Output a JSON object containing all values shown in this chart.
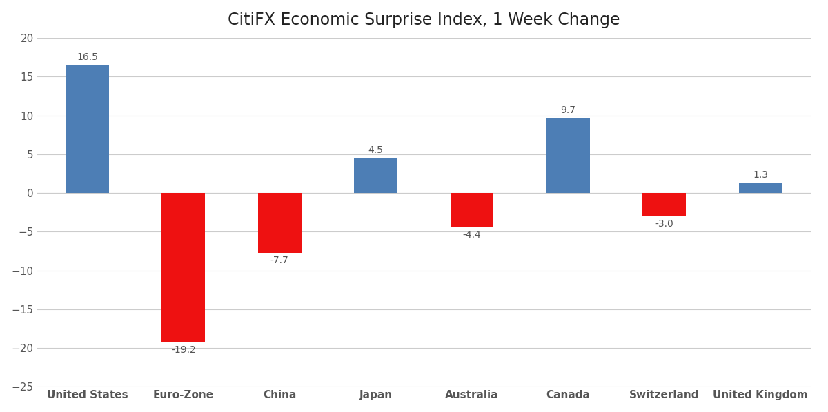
{
  "title": "CitiFX Economic Surprise Index, 1 Week Change",
  "categories": [
    "United States",
    "Euro-Zone",
    "China",
    "Japan",
    "Australia",
    "Canada",
    "Switzerland",
    "United Kingdom"
  ],
  "values": [
    16.5,
    -19.2,
    -7.7,
    4.5,
    -4.4,
    9.7,
    -3.0,
    1.3
  ],
  "bar_color_positive": "#4d7eb5",
  "bar_color_negative": "#ee1111",
  "ylim": [
    -25,
    20
  ],
  "yticks": [
    -25,
    -20,
    -15,
    -10,
    -5,
    0,
    5,
    10,
    15,
    20
  ],
  "background_color": "#ffffff",
  "grid_color": "#cccccc",
  "label_color": "#555555",
  "title_color": "#222222",
  "title_fontsize": 17,
  "tick_fontsize": 11,
  "annotation_fontsize": 10,
  "bar_width": 0.45
}
